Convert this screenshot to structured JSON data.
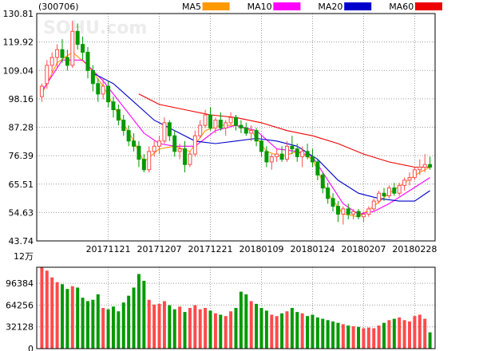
{
  "stock": {
    "code_label": "(300706)",
    "watermark": "SOHU.com"
  },
  "legend": [
    {
      "name": "MA5",
      "color": "#ff9900"
    },
    {
      "name": "MA10",
      "color": "#ff00ff"
    },
    {
      "name": "MA20",
      "color": "#0000cc"
    },
    {
      "name": "MA60",
      "color": "#ee0000"
    }
  ],
  "colors": {
    "up": "#ff4a4a",
    "down": "#009900",
    "grid": "#9a9a9a",
    "frame": "#000000"
  },
  "chart_data": [
    {
      "type": "candlestick",
      "title": "",
      "ylim": [
        43.74,
        130.81
      ],
      "y_ticks": [
        "130.81",
        "119.92",
        "109.04",
        "98.16",
        "87.28",
        "76.39",
        "65.51",
        "54.63",
        "43.74"
      ],
      "x_tick_labels": [
        {
          "index": 13,
          "label": "20171121"
        },
        {
          "index": 23,
          "label": "20171207"
        },
        {
          "index": 33,
          "label": "20171221"
        },
        {
          "index": 43,
          "label": "20180109"
        },
        {
          "index": 53,
          "label": "20180124"
        },
        {
          "index": 63,
          "label": "20180207"
        },
        {
          "index": 73,
          "label": "20180228"
        }
      ],
      "candles": [
        [
          99,
          104,
          97,
          103
        ],
        [
          104,
          113,
          102,
          111
        ],
        [
          111,
          116,
          108,
          114
        ],
        [
          114,
          119,
          110,
          117
        ],
        [
          117,
          121,
          112,
          114
        ],
        [
          114,
          117,
          109,
          111
        ],
        [
          111,
          128,
          110,
          124
        ],
        [
          124,
          127,
          117,
          119
        ],
        [
          119,
          122,
          113,
          116
        ],
        [
          116,
          118,
          106,
          109
        ],
        [
          109,
          111,
          101,
          104
        ],
        [
          104,
          106,
          97,
          100
        ],
        [
          100,
          106,
          98,
          103
        ],
        [
          103,
          105,
          95,
          97
        ],
        [
          97,
          99,
          91,
          94
        ],
        [
          94,
          96,
          88,
          90
        ],
        [
          90,
          92,
          84,
          86
        ],
        [
          86,
          88,
          80,
          82
        ],
        [
          82,
          85,
          78,
          80
        ],
        [
          80,
          82,
          72,
          75
        ],
        [
          75,
          77,
          70,
          71
        ],
        [
          71,
          80,
          70,
          78
        ],
        [
          78,
          82,
          76,
          80
        ],
        [
          80,
          84,
          77,
          82
        ],
        [
          82,
          91,
          81,
          89
        ],
        [
          89,
          90,
          82,
          84
        ],
        [
          84,
          86,
          76,
          78
        ],
        [
          78,
          81,
          75,
          79
        ],
        [
          79,
          82,
          70,
          73
        ],
        [
          73,
          78,
          72,
          77
        ],
        [
          77,
          86,
          76,
          84
        ],
        [
          84,
          90,
          83,
          88
        ],
        [
          88,
          94,
          87,
          92
        ],
        [
          92,
          95,
          86,
          87
        ],
        [
          87,
          91,
          85,
          90
        ],
        [
          90,
          93,
          86,
          87
        ],
        [
          87,
          90,
          84,
          89
        ],
        [
          89,
          93,
          88,
          91
        ],
        [
          91,
          92,
          86,
          88
        ],
        [
          88,
          90,
          85,
          87
        ],
        [
          87,
          89,
          84,
          85
        ],
        [
          85,
          88,
          82,
          86
        ],
        [
          86,
          87,
          80,
          82
        ],
        [
          82,
          84,
          76,
          78
        ],
        [
          78,
          80,
          72,
          74
        ],
        [
          74,
          77,
          71,
          76
        ],
        [
          76,
          79,
          74,
          77
        ],
        [
          77,
          80,
          74,
          75
        ],
        [
          75,
          82,
          74,
          80
        ],
        [
          80,
          84,
          77,
          79
        ],
        [
          79,
          81,
          74,
          76
        ],
        [
          76,
          80,
          72,
          78
        ],
        [
          78,
          81,
          75,
          76
        ],
        [
          76,
          79,
          72,
          74
        ],
        [
          74,
          75,
          67,
          69
        ],
        [
          69,
          70,
          62,
          64
        ],
        [
          64,
          66,
          58,
          60
        ],
        [
          60,
          62,
          55,
          57
        ],
        [
          57,
          59,
          51,
          54
        ],
        [
          54,
          57,
          50,
          56
        ],
        [
          56,
          58,
          52,
          54
        ],
        [
          54,
          56,
          52,
          55
        ],
        [
          55,
          56,
          52,
          53
        ],
        [
          53,
          55,
          51,
          54
        ],
        [
          54,
          57,
          53,
          56
        ],
        [
          56,
          60,
          55,
          59
        ],
        [
          59,
          63,
          58,
          62
        ],
        [
          62,
          64,
          59,
          61
        ],
        [
          61,
          65,
          60,
          64
        ],
        [
          64,
          66,
          61,
          62
        ],
        [
          62,
          66,
          61,
          65
        ],
        [
          65,
          68,
          63,
          67
        ],
        [
          67,
          70,
          65,
          68
        ],
        [
          68,
          72,
          67,
          71
        ],
        [
          71,
          75,
          69,
          72
        ],
        [
          72,
          77,
          70,
          73
        ],
        [
          73,
          76,
          71,
          72
        ]
      ],
      "ma": {
        "MA5": [
          [
            0,
            100
          ],
          [
            3,
            112
          ],
          [
            6,
            116
          ],
          [
            9,
            111
          ],
          [
            12,
            103
          ],
          [
            15,
            92
          ],
          [
            18,
            82
          ],
          [
            20,
            74
          ],
          [
            23,
            79
          ],
          [
            26,
            80
          ],
          [
            29,
            78
          ],
          [
            32,
            86
          ],
          [
            35,
            88
          ],
          [
            38,
            88
          ],
          [
            41,
            86
          ],
          [
            44,
            78
          ],
          [
            47,
            76
          ],
          [
            50,
            78
          ],
          [
            53,
            75
          ],
          [
            56,
            62
          ],
          [
            59,
            54
          ],
          [
            62,
            53
          ],
          [
            65,
            57
          ],
          [
            68,
            62
          ],
          [
            71,
            66
          ],
          [
            74,
            70
          ],
          [
            76,
            72
          ]
        ],
        "MA10": [
          [
            0,
            101
          ],
          [
            4,
            113
          ],
          [
            8,
            113
          ],
          [
            12,
            105
          ],
          [
            16,
            95
          ],
          [
            20,
            85
          ],
          [
            23,
            81
          ],
          [
            26,
            80
          ],
          [
            30,
            80
          ],
          [
            34,
            86
          ],
          [
            38,
            88
          ],
          [
            42,
            86
          ],
          [
            46,
            79
          ],
          [
            50,
            78
          ],
          [
            53,
            76
          ],
          [
            56,
            67
          ],
          [
            59,
            58
          ],
          [
            62,
            54
          ],
          [
            65,
            55
          ],
          [
            68,
            58
          ],
          [
            72,
            63
          ],
          [
            76,
            68
          ]
        ],
        "MA20": [
          [
            10,
            108
          ],
          [
            14,
            104
          ],
          [
            18,
            97
          ],
          [
            22,
            90
          ],
          [
            26,
            86
          ],
          [
            30,
            82
          ],
          [
            34,
            81
          ],
          [
            38,
            82
          ],
          [
            42,
            83
          ],
          [
            46,
            82
          ],
          [
            50,
            80
          ],
          [
            54,
            75
          ],
          [
            58,
            67
          ],
          [
            62,
            62
          ],
          [
            66,
            60
          ],
          [
            70,
            59
          ],
          [
            73,
            59
          ],
          [
            76,
            63
          ]
        ],
        "MA60": [
          [
            19,
            100
          ],
          [
            23,
            96
          ],
          [
            28,
            94
          ],
          [
            33,
            92
          ],
          [
            38,
            91
          ],
          [
            43,
            89
          ],
          [
            48,
            86
          ],
          [
            53,
            84
          ],
          [
            58,
            81
          ],
          [
            63,
            77
          ],
          [
            68,
            74
          ],
          [
            73,
            72
          ],
          [
            76,
            72
          ]
        ]
      }
    },
    {
      "type": "bar",
      "title": "",
      "unit_label": "12万",
      "ylim": [
        0,
        120000
      ],
      "y_ticks": [
        "96384",
        "64256",
        "32128",
        "0"
      ],
      "values": [
        120000,
        115000,
        105000,
        98000,
        95000,
        88000,
        92000,
        90000,
        75000,
        70000,
        72000,
        80000,
        60000,
        58000,
        62000,
        55000,
        68000,
        78000,
        90000,
        110000,
        100000,
        72000,
        65000,
        66000,
        70000,
        64000,
        58000,
        62000,
        54000,
        60000,
        64000,
        58000,
        60000,
        56000,
        52000,
        50000,
        48000,
        55000,
        60000,
        84000,
        80000,
        70000,
        66000,
        60000,
        56000,
        50000,
        48000,
        52000,
        55000,
        60000,
        54000,
        52000,
        48000,
        50000,
        46000,
        44000,
        42000,
        40000,
        38000,
        36000,
        34000,
        33000,
        32000,
        30000,
        31000,
        30000,
        34000,
        38000,
        42000,
        44000,
        46000,
        42000,
        40000,
        48000,
        50000,
        44000,
        24000
      ]
    }
  ]
}
